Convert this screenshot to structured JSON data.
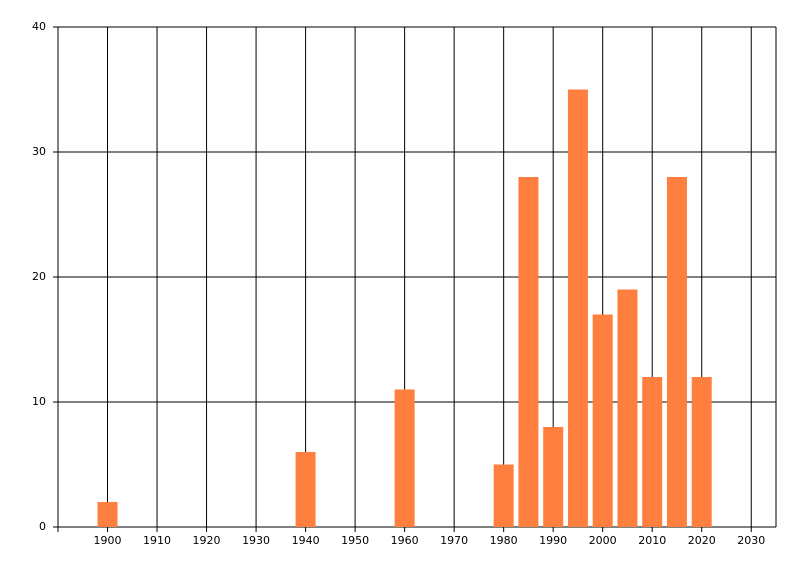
{
  "chart_data": {
    "type": "bar",
    "x": [
      1900,
      1940,
      1960,
      1980,
      1985,
      1990,
      1995,
      2000,
      2005,
      2010,
      2015,
      2020
    ],
    "values": [
      2,
      6,
      11,
      5,
      28,
      8,
      35,
      17,
      19,
      12,
      28,
      12
    ],
    "color": "#ff7f3f",
    "xlim": [
      1890,
      2035
    ],
    "xticks": [
      1900,
      1910,
      1920,
      1930,
      1940,
      1950,
      1960,
      1970,
      1980,
      1990,
      2000,
      2010,
      2020,
      2030
    ],
    "ylim": [
      0,
      40
    ],
    "yticks": [
      0,
      10,
      20,
      30,
      40
    ],
    "grid": true
  }
}
